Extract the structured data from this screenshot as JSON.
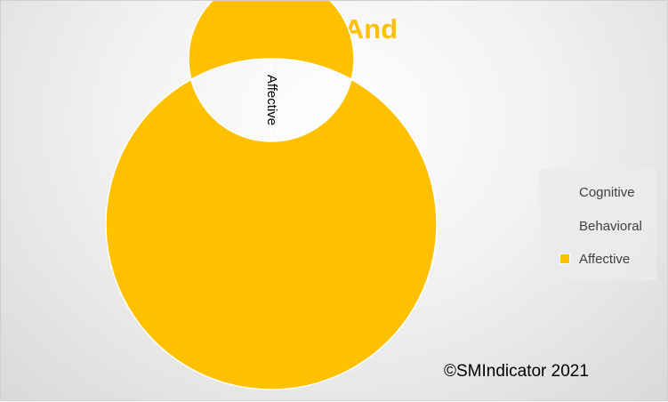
{
  "chart_data": {
    "type": "pie",
    "variant": "donut",
    "title": "Both-And",
    "categories": [
      "Cognitive",
      "Behavioral",
      "Affective"
    ],
    "values": [
      0,
      0,
      100
    ],
    "colors": [
      "#4472c4",
      "#ed7d31",
      "#ffc000"
    ],
    "data_labels": [
      "",
      "",
      "Affective"
    ],
    "legend": {
      "position": "right",
      "entries": [
        "Cognitive",
        "Behavioral",
        "Affective"
      ]
    }
  },
  "footer": {
    "copyright": "©SMIndicator 2021"
  }
}
